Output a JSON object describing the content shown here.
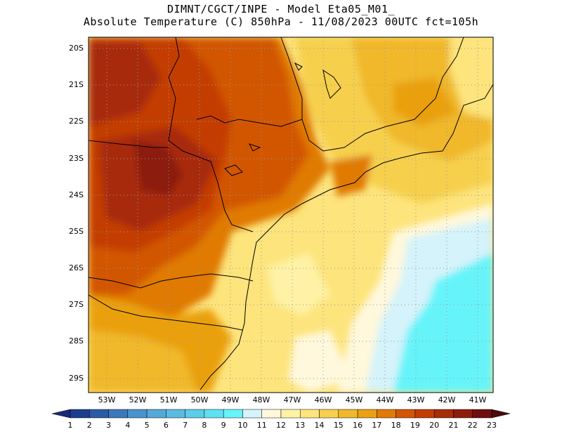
{
  "title": {
    "line1": "DIMNT/CGCT/INPE -  Model Eta05_M01_",
    "line2": "Absolute Temperature (C) 850hPa -  11/08/2023 00UTC fct=105h"
  },
  "map": {
    "lat_labels": [
      "20S",
      "21S",
      "22S",
      "23S",
      "24S",
      "25S",
      "26S",
      "27S",
      "28S",
      "29S"
    ],
    "lon_labels": [
      "53W",
      "52W",
      "51W",
      "50W",
      "49W",
      "48W",
      "47W",
      "46W",
      "45W",
      "44W",
      "43W",
      "42W",
      "41W"
    ],
    "lon_range": [
      -53.8,
      -40.3
    ],
    "lat_range": [
      -29.4,
      -19.8
    ]
  },
  "colorbar": {
    "labels": [
      "1",
      "2",
      "3",
      "4",
      "5",
      "6",
      "7",
      "8",
      "9",
      "10",
      "11",
      "12",
      "13",
      "14",
      "15",
      "16",
      "17",
      "18",
      "19",
      "20",
      "21",
      "22",
      "23"
    ],
    "colors": [
      "#1e3c8c",
      "#2a5ba6",
      "#3a79bc",
      "#4a93cc",
      "#55a9d6",
      "#5cbbe0",
      "#5ccde8",
      "#5ee0f2",
      "#66f4fa",
      "#d4f3fa",
      "#fff8dc",
      "#fff2a6",
      "#fde47c",
      "#f6d04e",
      "#f0b82c",
      "#eaa010",
      "#e07a06",
      "#d25604",
      "#c43e04",
      "#a82c08",
      "#8c1c0c",
      "#6e0e10"
    ],
    "left_arrow_color": "#1a2a78",
    "right_arrow_color": "#4a0a0e"
  }
}
